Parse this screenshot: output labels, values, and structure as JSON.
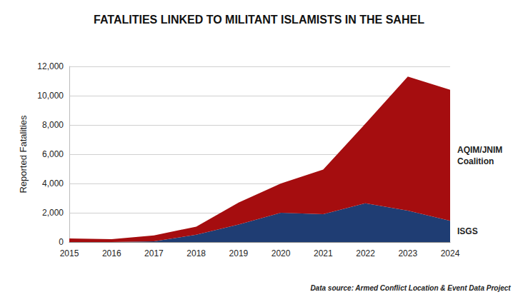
{
  "chart_data": {
    "type": "area",
    "title": "FATALITIES LINKED TO MILITANT ISLAMISTS IN THE SAHEL",
    "y_label": "Reported Fatalities",
    "source": "Data source: Armed Conflict Location & Event Data Project",
    "categories": [
      "2015",
      "2016",
      "2017",
      "2018",
      "2019",
      "2020",
      "2021",
      "2022",
      "2023",
      "2024"
    ],
    "stacked": true,
    "grid": true,
    "series": [
      {
        "name": "ISGS",
        "color": "#1f3d73",
        "values": [
          0,
          0,
          50,
          500,
          1200,
          2000,
          1900,
          2650,
          2150,
          1450
        ]
      },
      {
        "name": "AQIM/JNIM Coalition",
        "color": "#a50d0f",
        "values": [
          250,
          200,
          400,
          550,
          1500,
          2000,
          3050,
          5450,
          9150,
          8950
        ]
      }
    ],
    "ylim": [
      0,
      12000
    ],
    "yticks": [
      0,
      {
        "value": 2000,
        "label": "2,000"
      },
      {
        "value": 4000,
        "label": "4,000"
      },
      {
        "value": 6000,
        "label": "6,000"
      },
      {
        "value": 8000,
        "label": "8,000"
      },
      {
        "value": 10000,
        "label": "10,000"
      },
      {
        "value": 12000,
        "label": "12,000"
      }
    ]
  }
}
